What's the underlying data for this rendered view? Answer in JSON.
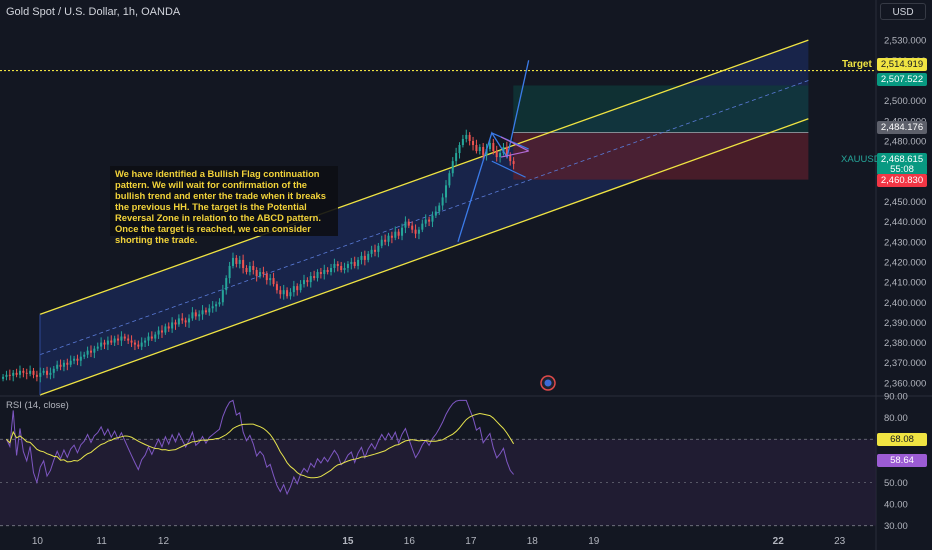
{
  "header": {
    "title": "Gold Spot / U.S. Dollar, 1h, OANDA",
    "currency_button": "USD"
  },
  "annotation_text": "We have identified a Bullish Flag continuation\npattern. We will wait for confirmation of the\nbullish trend and enter the trade when it breaks\nthe previous HH. The target is the Potential\nReversal Zone in relation to the ABCD pattern.\nOnce the target is reached, we can consider\nshorting the trade.",
  "price_labels": {
    "target_text": "Target",
    "target_value": "2,514.919",
    "tp_value": "2,507.522",
    "entry_value": "2,484.176",
    "symbol": "XAUUSD",
    "last_price": "2,468.615",
    "countdown": "55:08",
    "stop_value": "2,460.830"
  },
  "rsi_labels": {
    "title": "RSI (14, close)",
    "ma_value": "68.08",
    "rsi_value": "58.64"
  },
  "colors": {
    "background": "#131722",
    "bull_candle": "#26a69a",
    "bear_candle": "#ef5350",
    "channel_line": "#f0e442",
    "target_line": "#f0e442",
    "tp_zone": "#0f3a3a",
    "sl_zone": "#5a1f2c",
    "rsi_line": "#7e57c2",
    "rsi_ma": "#e6e34d"
  },
  "chart_data": {
    "type": "candlestick",
    "price_axis": {
      "ticks": [
        2360,
        2370,
        2380,
        2390,
        2400,
        2410,
        2420,
        2430,
        2440,
        2450,
        2460,
        2470,
        2480,
        2490,
        2500,
        2510,
        2520,
        2530
      ],
      "tick_labels": [
        "2,360.000",
        "2,370.000",
        "2,380.000",
        "2,390.000",
        "2,400.000",
        "2,410.000",
        "2,420.000",
        "2,430.000",
        "2,440.000",
        "2,450.000",
        "2,460.000",
        "2,470.000",
        "2,480.000",
        "2,490.000",
        "2,500.000",
        "2,510.000",
        "2,520.000",
        "2,530.000"
      ],
      "range": [
        2354,
        2540
      ]
    },
    "time_axis": {
      "labels": [
        "10",
        "11",
        "12",
        "15",
        "16",
        "17",
        "18",
        "19",
        "22",
        "23"
      ],
      "bold": [
        "15",
        "22"
      ],
      "range_days": [
        9.35,
        23.6
      ]
    },
    "hourly_closes": [
      2363,
      2364,
      2363.5,
      2365,
      2364,
      2366,
      2365,
      2364.5,
      2366,
      2364,
      2363,
      2365,
      2366,
      2364,
      2365,
      2367,
      2369,
      2368,
      2370,
      2369,
      2371,
      2372,
      2371,
      2373,
      2374,
      2376,
      2375,
      2377,
      2378,
      2380,
      2379,
      2381,
      2380,
      2382,
      2381,
      2383,
      2382,
      2381,
      2380,
      2379,
      2378,
      2380,
      2381,
      2383,
      2382,
      2384,
      2386,
      2385,
      2388,
      2387,
      2390,
      2389,
      2392,
      2391,
      2390,
      2392,
      2395,
      2393,
      2394,
      2396,
      2395,
      2397,
      2398,
      2399,
      2400,
      2406,
      2412,
      2418,
      2422,
      2419,
      2421,
      2417,
      2415,
      2418,
      2416,
      2413,
      2415,
      2414,
      2411,
      2412,
      2409,
      2406,
      2404,
      2406,
      2403,
      2405,
      2408,
      2406,
      2409,
      2411,
      2410,
      2413,
      2412,
      2415,
      2414,
      2416,
      2415,
      2417,
      2419,
      2418,
      2416,
      2417,
      2419,
      2420,
      2418,
      2421,
      2423,
      2421,
      2424,
      2426,
      2425,
      2428,
      2431,
      2430,
      2433,
      2432,
      2435,
      2433,
      2437,
      2440,
      2438,
      2436,
      2434,
      2436,
      2439,
      2441,
      2440,
      2443,
      2445,
      2448,
      2452,
      2458,
      2464,
      2470,
      2474,
      2478,
      2481,
      2483,
      2480,
      2478,
      2475,
      2477,
      2473,
      2476,
      2479,
      2475,
      2472,
      2474,
      2477,
      2473,
      2470,
      2468.6
    ],
    "hourly_start_day": 9.4,
    "hourly_step_days": 0.055,
    "rsi_axis": {
      "ticks": [
        30,
        40,
        50,
        60,
        70,
        80,
        90
      ],
      "tick_labels": [
        "30.00",
        "40.00",
        "50.00",
        "60.00",
        "70.00",
        "80.00",
        "90.00"
      ],
      "range": [
        28,
        90
      ]
    },
    "rsi_bands": {
      "upper": 70,
      "lower": 30
    },
    "rsi_last": 58.64,
    "rsi_ma_last": 68.08,
    "drawings": {
      "channel_upper": [
        [
          10.0,
          2394
        ],
        [
          22.5,
          2530
        ]
      ],
      "channel_lower": [
        [
          10.0,
          2354
        ],
        [
          22.5,
          2491
        ]
      ],
      "channel_mid": [
        [
          10.0,
          2374
        ],
        [
          22.5,
          2510
        ]
      ],
      "target_price": 2514.919,
      "position": {
        "start_day": 17.7,
        "end_day": 22.5,
        "tp": 2507.522,
        "entry": 2484.176,
        "stop": 2460.83
      }
    }
  }
}
